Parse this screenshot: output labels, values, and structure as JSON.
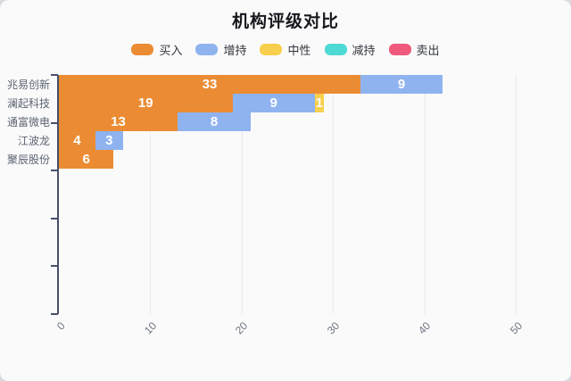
{
  "chart_data": {
    "type": "bar",
    "orientation": "horizontal",
    "stacked": true,
    "title": "机构评级对比",
    "categories": [
      "兆易创新",
      "澜起科技",
      "通富微电",
      "江波龙",
      "聚辰股份"
    ],
    "series": [
      {
        "name": "买入",
        "color": "#EB8C34",
        "values": [
          33,
          19,
          13,
          4,
          6
        ]
      },
      {
        "name": "增持",
        "color": "#8FB3EF",
        "values": [
          9,
          9,
          8,
          3,
          0
        ]
      },
      {
        "name": "中性",
        "color": "#F8CF4C",
        "values": [
          0,
          1,
          0,
          0,
          0
        ]
      },
      {
        "name": "减持",
        "color": "#4FD9D4",
        "values": [
          0,
          0,
          0,
          0,
          0
        ]
      },
      {
        "name": "卖出",
        "color": "#F0597B",
        "values": [
          0,
          0,
          0,
          0,
          0
        ]
      }
    ],
    "totals": [
      42,
      29,
      21,
      7,
      6
    ],
    "x_ticks": [
      0,
      10,
      20,
      30,
      40,
      50
    ],
    "xlim": [
      0,
      50
    ],
    "grid": true,
    "legend_position": "top",
    "bar_label_color": "#ffffff",
    "axis_line_color": "#475069",
    "gridline_color": "#e9eaef",
    "tick_label_color": "#6e7480",
    "category_label_color": "#5c6370",
    "background_color": "#fafafb"
  }
}
